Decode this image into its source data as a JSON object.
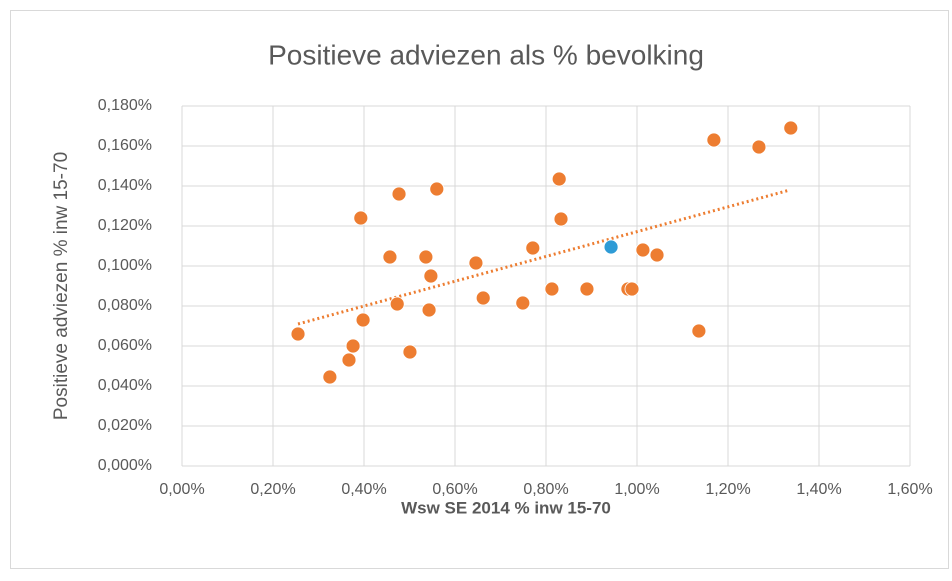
{
  "chart_data": {
    "type": "scatter",
    "title": "Positieve adviezen als % bevolking",
    "xlabel": "Wsw SE 2014 % inw 15-70",
    "ylabel": "Positieve adviezen  % inw 15-70",
    "xlim": [
      0,
      1.6
    ],
    "ylim": [
      0,
      0.18
    ],
    "xticks": [
      {
        "value": 0,
        "label": "0,00%"
      },
      {
        "value": 0.2,
        "label": "0,20%"
      },
      {
        "value": 0.4,
        "label": "0,40%"
      },
      {
        "value": 0.6,
        "label": "0,60%"
      },
      {
        "value": 0.8,
        "label": "0,80%"
      },
      {
        "value": 1.0,
        "label": "1,00%"
      },
      {
        "value": 1.2,
        "label": "1,20%"
      },
      {
        "value": 1.4,
        "label": "1,40%"
      },
      {
        "value": 1.6,
        "label": "1,60%"
      }
    ],
    "yticks": [
      {
        "value": 0,
        "label": "0,000%"
      },
      {
        "value": 0.02,
        "label": "0,020%"
      },
      {
        "value": 0.04,
        "label": "0,040%"
      },
      {
        "value": 0.06,
        "label": "0,060%"
      },
      {
        "value": 0.08,
        "label": "0,080%"
      },
      {
        "value": 0.1,
        "label": "0,100%"
      },
      {
        "value": 0.12,
        "label": "0,120%"
      },
      {
        "value": 0.14,
        "label": "0,140%"
      },
      {
        "value": 0.16,
        "label": "0,160%"
      },
      {
        "value": 0.18,
        "label": "0,180%"
      }
    ],
    "grid": true,
    "series": [
      {
        "color": "#ED7D31",
        "x": [
          0.255,
          0.325,
          0.367,
          0.376,
          0.398,
          0.393,
          0.457,
          0.473,
          0.477,
          0.501,
          0.536,
          0.547,
          0.543,
          0.56,
          0.646,
          0.662,
          0.749,
          0.771,
          0.813,
          0.829,
          0.833,
          0.89,
          0.98,
          0.989,
          1.013,
          1.044,
          1.136,
          1.169,
          1.268,
          1.338
        ],
        "values": [
          0.066,
          0.0445,
          0.053,
          0.06,
          0.073,
          0.124,
          0.1045,
          0.081,
          0.136,
          0.057,
          0.1045,
          0.095,
          0.078,
          0.1385,
          0.1015,
          0.084,
          0.0815,
          0.109,
          0.0885,
          0.1435,
          0.1235,
          0.0885,
          0.0885,
          0.0885,
          0.108,
          0.1055,
          0.0675,
          0.163,
          0.1595,
          0.169
        ]
      },
      {
        "color": "#2E9BD6",
        "x": [
          0.943
        ],
        "values": [
          0.1095
        ]
      }
    ],
    "trendline": {
      "color": "#ED7D31",
      "x": [
        0.255,
        1.336
      ],
      "values": [
        0.071,
        0.138
      ]
    }
  }
}
